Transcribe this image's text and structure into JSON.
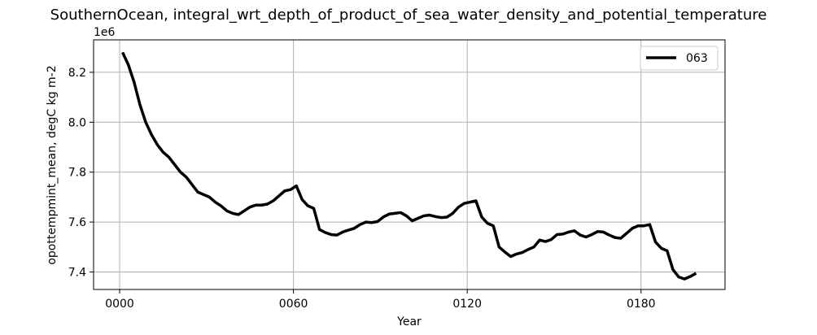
{
  "chart_data": {
    "type": "line",
    "title": "SouthernOcean, integral_wrt_depth_of_product_of_sea_water_density_and_potential_temperature",
    "xlabel": "Year",
    "ylabel": "opottempmint_mean, degC kg m-2",
    "y_offset_label": "1e6",
    "xlim": [
      -9,
      209
    ],
    "ylim": [
      7.33,
      8.33
    ],
    "y_scale_factor": 1000000,
    "x_ticks": [
      0,
      60,
      120,
      180
    ],
    "x_tick_labels": [
      "0000",
      "0060",
      "0120",
      "0180"
    ],
    "y_ticks": [
      7.4,
      7.6,
      7.8,
      8.0,
      8.2
    ],
    "y_tick_labels": [
      "7.4",
      "7.6",
      "7.8",
      "8.0",
      "8.2"
    ],
    "grid": true,
    "legend_position": "upper right",
    "series": [
      {
        "name": "063",
        "color": "#000000",
        "x": [
          1,
          3,
          5,
          7,
          9,
          11,
          13,
          15,
          17,
          19,
          21,
          23,
          25,
          27,
          29,
          31,
          33,
          35,
          37,
          39,
          41,
          43,
          45,
          47,
          49,
          51,
          53,
          55,
          57,
          59,
          61,
          63,
          65,
          67,
          69,
          71,
          73,
          75,
          77,
          79,
          81,
          83,
          85,
          87,
          89,
          91,
          93,
          95,
          97,
          99,
          101,
          103,
          105,
          107,
          109,
          111,
          113,
          115,
          117,
          119,
          121,
          123,
          125,
          127,
          129,
          131,
          133,
          135,
          137,
          139,
          141,
          143,
          145,
          147,
          149,
          151,
          153,
          155,
          157,
          159,
          161,
          163,
          165,
          167,
          169,
          171,
          173,
          175,
          177,
          179,
          181,
          183,
          185,
          187,
          189,
          191,
          193,
          195,
          197,
          199
        ],
        "y": [
          8.28,
          8.23,
          8.16,
          8.07,
          8.0,
          7.95,
          7.91,
          7.88,
          7.86,
          7.83,
          7.8,
          7.78,
          7.75,
          7.72,
          7.71,
          7.7,
          7.68,
          7.665,
          7.645,
          7.635,
          7.63,
          7.645,
          7.66,
          7.668,
          7.668,
          7.672,
          7.685,
          7.705,
          7.725,
          7.73,
          7.745,
          7.69,
          7.665,
          7.655,
          7.57,
          7.558,
          7.55,
          7.548,
          7.56,
          7.568,
          7.575,
          7.59,
          7.6,
          7.598,
          7.602,
          7.62,
          7.632,
          7.635,
          7.638,
          7.625,
          7.605,
          7.615,
          7.625,
          7.628,
          7.622,
          7.618,
          7.62,
          7.635,
          7.66,
          7.675,
          7.68,
          7.685,
          7.62,
          7.595,
          7.585,
          7.5,
          7.48,
          7.462,
          7.472,
          7.478,
          7.49,
          7.5,
          7.528,
          7.522,
          7.53,
          7.55,
          7.552,
          7.56,
          7.565,
          7.548,
          7.54,
          7.55,
          7.562,
          7.56,
          7.548,
          7.538,
          7.535,
          7.555,
          7.575,
          7.585,
          7.585,
          7.59,
          7.52,
          7.495,
          7.485,
          7.41,
          7.38,
          7.372,
          7.382,
          7.395
        ]
      }
    ]
  }
}
